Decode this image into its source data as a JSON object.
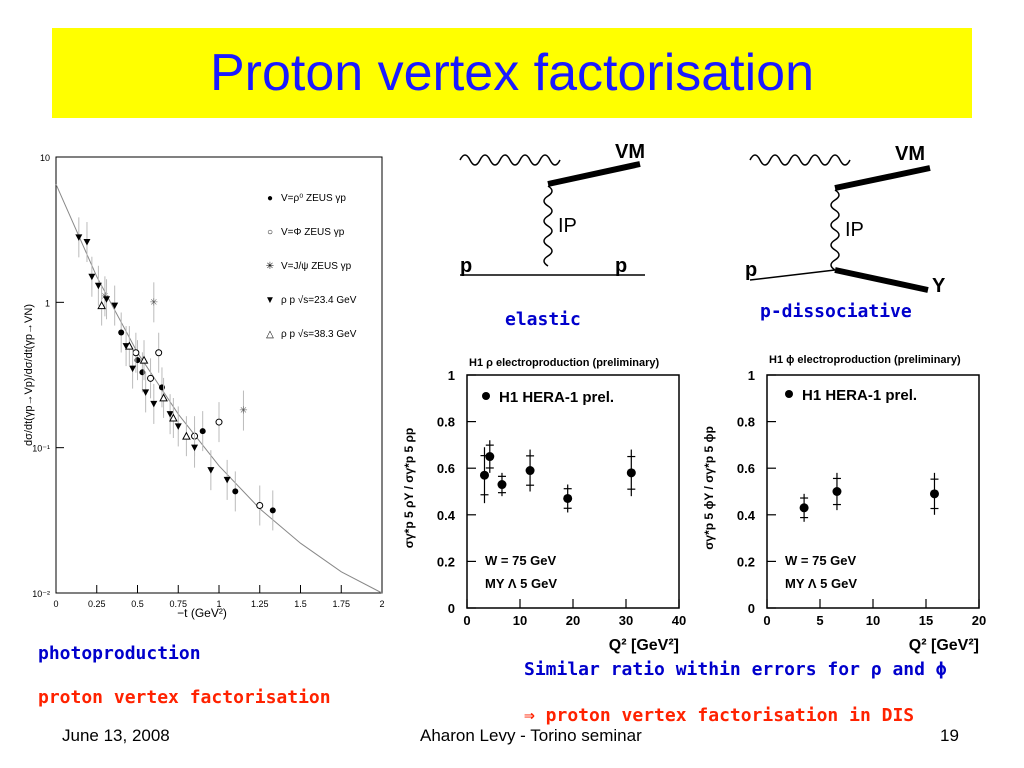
{
  "slide": {
    "title": "Proton vertex factorisation",
    "left_caption_1": "photoproduction",
    "left_caption_2": "proton vertex factorisation",
    "right_caption_1": "Similar ratio within errors for ρ and ϕ",
    "right_caption_2": "⇒ proton vertex factorisation in DIS",
    "footer_date": "June 13, 2008",
    "footer_center": "Aharon Levy - Torino seminar",
    "footer_page": "19",
    "colors": {
      "title_bg": "#ffff00",
      "title_text": "#1a1aff",
      "caption_blue": "#0000cc",
      "caption_red": "#ff2200"
    }
  },
  "diagrams": [
    {
      "label": "elastic",
      "vm": "VM",
      "pomeron": "IP",
      "p_in": "p",
      "p_out": "p"
    },
    {
      "label": "p-dissociative",
      "vm": "VM",
      "pomeron": "IP",
      "p_in": "p",
      "p_out": "Y"
    }
  ],
  "chart_data": [
    {
      "type": "scatter",
      "ylabel": "dσ/dt(γp→Vp)/dσ/dt(γp→VN)",
      "xlabel": "−t (GeV²)",
      "xlim": [
        0,
        2
      ],
      "ylim": [
        0.01,
        10
      ],
      "yscale": "log",
      "xticks": [
        "0",
        "0.25",
        "0.5",
        "0.75",
        "1",
        "1.25",
        "1.5",
        "1.75",
        "2"
      ],
      "yticks": [
        "10⁻²",
        "10⁻¹",
        "1",
        "10"
      ],
      "legend": [
        {
          "symbol": "●",
          "text": "V=ρ⁰  ZEUS γp"
        },
        {
          "symbol": "○",
          "text": "V=Φ  ZEUS γp"
        },
        {
          "symbol": "✳",
          "text": "V=J/ψ  ZEUS γp"
        },
        {
          "symbol": "▼",
          "text": "ρ p √s=23.4 GeV"
        },
        {
          "symbol": "△",
          "text": "ρ p √s=38.3 GeV"
        }
      ],
      "fit_curve": {
        "x": [
          0,
          0.25,
          0.5,
          0.75,
          1.0,
          1.25,
          1.5,
          1.75,
          2.0
        ],
        "y": [
          6.5,
          1.5,
          0.45,
          0.17,
          0.075,
          0.038,
          0.022,
          0.014,
          0.01
        ]
      },
      "series": [
        {
          "symbol": "circle",
          "points": [
            [
              0.4,
              0.62
            ],
            [
              0.5,
              0.4
            ],
            [
              0.53,
              0.33
            ],
            [
              0.65,
              0.26
            ],
            [
              0.9,
              0.13
            ],
            [
              1.1,
              0.05
            ],
            [
              1.33,
              0.037
            ]
          ]
        },
        {
          "symbol": "circle-open",
          "points": [
            [
              0.49,
              0.45
            ],
            [
              0.58,
              0.3
            ],
            [
              0.63,
              0.45
            ],
            [
              0.85,
              0.12
            ],
            [
              1.0,
              0.15
            ],
            [
              1.25,
              0.04
            ]
          ]
        },
        {
          "symbol": "star",
          "points": [
            [
              0.3,
              1.1
            ],
            [
              0.6,
              1.0
            ],
            [
              1.15,
              0.18
            ]
          ]
        },
        {
          "symbol": "triangle-down",
          "points": [
            [
              0.14,
              2.8
            ],
            [
              0.19,
              2.6
            ],
            [
              0.22,
              1.5
            ],
            [
              0.26,
              1.3
            ],
            [
              0.31,
              1.05
            ],
            [
              0.36,
              0.95
            ],
            [
              0.43,
              0.5
            ],
            [
              0.47,
              0.35
            ],
            [
              0.55,
              0.24
            ],
            [
              0.6,
              0.2
            ],
            [
              0.7,
              0.17
            ],
            [
              0.75,
              0.14
            ],
            [
              0.85,
              0.1
            ],
            [
              0.95,
              0.07
            ],
            [
              1.05,
              0.06
            ]
          ]
        },
        {
          "symbol": "triangle-up",
          "points": [
            [
              0.28,
              0.95
            ],
            [
              0.45,
              0.5
            ],
            [
              0.54,
              0.4
            ],
            [
              0.66,
              0.22
            ],
            [
              0.72,
              0.16
            ],
            [
              0.8,
              0.12
            ]
          ]
        }
      ]
    },
    {
      "type": "scatter",
      "title": "H1 ρ electroproduction (preliminary)",
      "ylabel": "σγ*p 5 ρY / σγ*p 5 ρp",
      "xlabel": "Q² [GeV²]",
      "xlim": [
        0,
        40
      ],
      "ylim": [
        0,
        1
      ],
      "xticks": [
        "0",
        "10",
        "20",
        "30",
        "40"
      ],
      "yticks": [
        "0",
        "0.2",
        "0.4",
        "0.6",
        "0.8",
        "1"
      ],
      "legend": "H1 HERA-1 prel.",
      "annotations": [
        "W = 75 GeV",
        "MY Λ 5 GeV"
      ],
      "points": [
        {
          "x": 3.3,
          "y": 0.57,
          "err": 0.12
        },
        {
          "x": 4.3,
          "y": 0.65,
          "err": 0.07
        },
        {
          "x": 6.6,
          "y": 0.53,
          "err": 0.05
        },
        {
          "x": 11.9,
          "y": 0.59,
          "err": 0.09
        },
        {
          "x": 19.0,
          "y": 0.47,
          "err": 0.06
        },
        {
          "x": 31.0,
          "y": 0.58,
          "err": 0.1
        }
      ]
    },
    {
      "type": "scatter",
      "title": "H1 ϕ electroproduction (preliminary)",
      "ylabel": "σγ*p 5 ϕY / σγ*p 5 ϕp",
      "xlabel": "Q² [GeV²]",
      "xlim": [
        0,
        20
      ],
      "ylim": [
        0,
        1
      ],
      "xticks": [
        "0",
        "5",
        "10",
        "15",
        "20"
      ],
      "yticks": [
        "0",
        "0.2",
        "0.4",
        "0.6",
        "0.8",
        "1"
      ],
      "legend": "H1 HERA-1 prel.",
      "annotations": [
        "W = 75 GeV",
        "MY Λ 5 GeV"
      ],
      "points": [
        {
          "x": 3.5,
          "y": 0.43,
          "err": 0.06
        },
        {
          "x": 6.6,
          "y": 0.5,
          "err": 0.08
        },
        {
          "x": 15.8,
          "y": 0.49,
          "err": 0.09
        }
      ]
    }
  ]
}
